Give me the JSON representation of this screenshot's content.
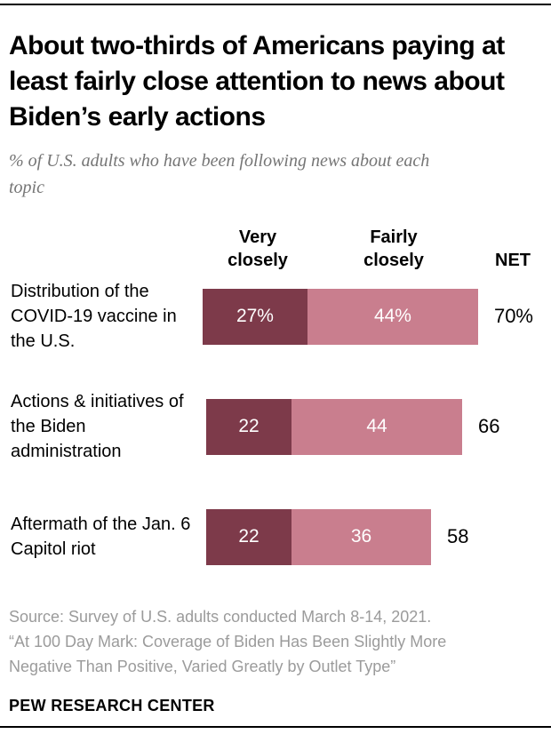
{
  "header": {
    "title": "About two-thirds of Americans paying at least fairly close attention to news about Biden’s early actions",
    "subtitle": "% of U.S. adults who have been following news about each topic"
  },
  "chart_data": {
    "type": "bar",
    "orientation": "horizontal",
    "stacked": true,
    "title": "About two-thirds of Americans paying at least fairly close attention to news about Biden’s early actions",
    "subtitle": "% of U.S. adults who have been following news about each topic",
    "categories": [
      "Distribution of the COVID-19 vaccine in the U.S.",
      "Actions & initiatives of the Biden administration",
      "Aftermath of the Jan. 6 Capitol riot"
    ],
    "series": [
      {
        "name": "Very closely",
        "color": "#7d3a4a",
        "values": [
          27,
          22,
          22
        ],
        "labels": [
          "27%",
          "22",
          "22"
        ]
      },
      {
        "name": "Fairly closely",
        "color": "#c97e8e",
        "values": [
          44,
          44,
          36
        ],
        "labels": [
          "44%",
          "44",
          "36"
        ]
      }
    ],
    "net": {
      "label": "NET",
      "values": [
        70,
        66,
        58
      ],
      "labels": [
        "70%",
        "66",
        "58"
      ]
    },
    "xlim": [
      0,
      70
    ],
    "value_unit": "%",
    "grid": false,
    "legend_position": "column-headers-above-first-bar",
    "value_label_color": "#ffffff",
    "net_label_color": "#000000"
  },
  "footer": {
    "source_lines": [
      "Source: Survey of U.S. adults conducted March 8-14, 2021.",
      "“At 100 Day Mark: Coverage of Biden Has Been Slightly More Negative Than Positive, Varied Greatly by Outlet Type”"
    ],
    "brand": "PEW RESEARCH CENTER"
  },
  "colors": {
    "very_closely": "#7d3a4a",
    "fairly_closely": "#c97e8e",
    "subtitle_gray": "#757575",
    "source_gray": "#9b9b9b",
    "rule_black": "#000000"
  }
}
